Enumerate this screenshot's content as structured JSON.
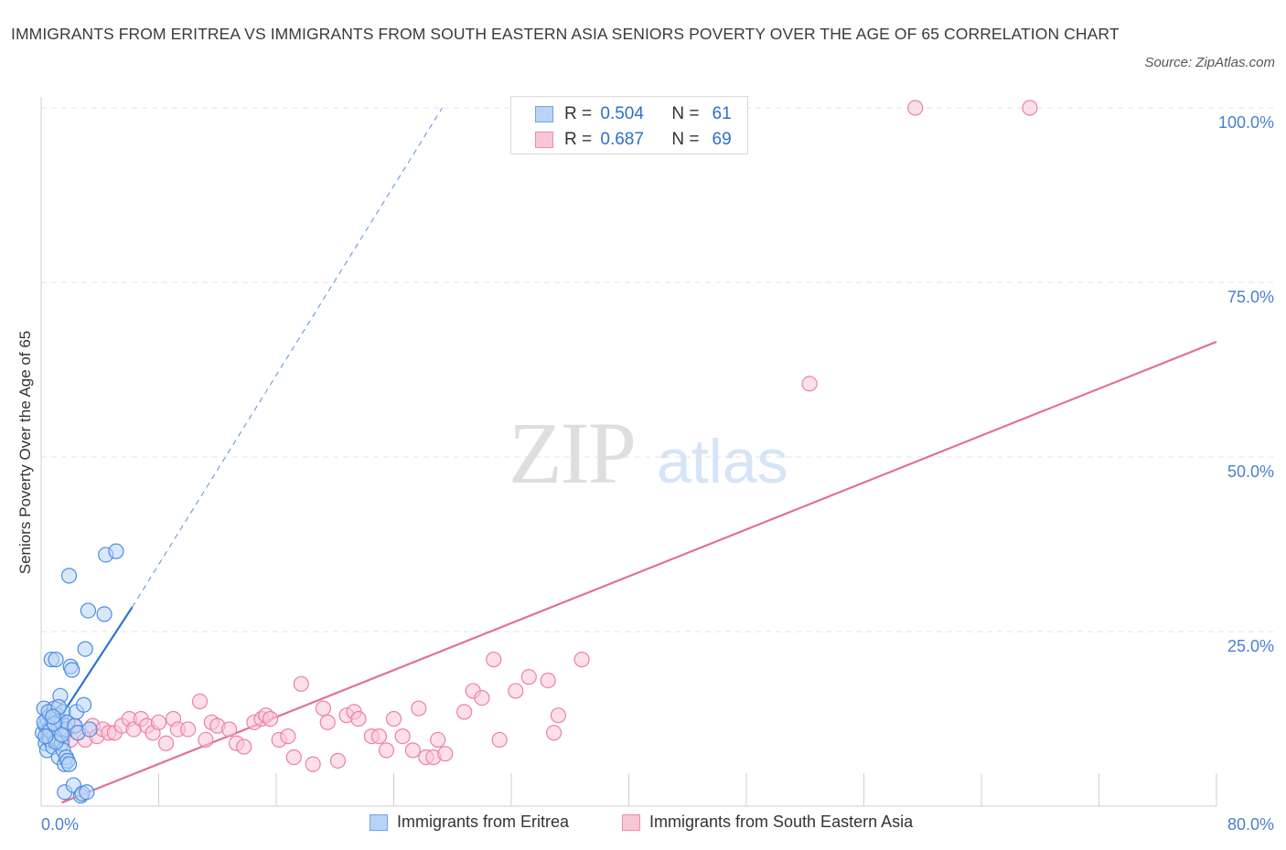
{
  "title": "IMMIGRANTS FROM ERITREA VS IMMIGRANTS FROM SOUTH EASTERN ASIA SENIORS POVERTY OVER THE AGE OF 65 CORRELATION CHART",
  "source": "Source: ZipAtlas.com",
  "watermark": {
    "zip": "ZIP",
    "atlas": "atlas"
  },
  "stats": [
    {
      "r_label": "R =",
      "r_value": "0.504",
      "n_label": "N =",
      "n_value": "61",
      "color": "#6fa3e8",
      "fill": "#b9d3f5"
    },
    {
      "r_label": "R =",
      "r_value": "0.687",
      "n_label": "N =",
      "n_value": "69",
      "color": "#f08cab",
      "fill": "#f9c6d6"
    }
  ],
  "legend": [
    {
      "label": "Immigrants from Eritrea",
      "color": "#6fa3e8",
      "fill": "#b9d3f5"
    },
    {
      "label": "Immigrants from South Eastern Asia",
      "color": "#f08cab",
      "fill": "#f9c6d6"
    }
  ],
  "chart_data": {
    "type": "scatter",
    "title": "IMMIGRANTS FROM ERITREA VS IMMIGRANTS FROM SOUTH EASTERN ASIA SENIORS POVERTY OVER THE AGE OF 65 CORRELATION CHART",
    "xlabel": "",
    "ylabel": "Seniors Poverty Over the Age of 65",
    "xlim": [
      0,
      80
    ],
    "ylim": [
      0,
      100
    ],
    "x_tick_labels": [
      {
        "value": 0,
        "label": "0.0%"
      },
      {
        "value": 80,
        "label": "80.0%"
      }
    ],
    "y_tick_labels": [
      {
        "value": 25,
        "label": "25.0%"
      },
      {
        "value": 50,
        "label": "50.0%"
      },
      {
        "value": 75,
        "label": "75.0%"
      },
      {
        "value": 100,
        "label": "100.0%"
      }
    ],
    "grid": true,
    "series": [
      {
        "name": "Immigrants from Eritrea",
        "color": "#4a8ee0",
        "fill": "#b9d3f5",
        "trend": {
          "x0": 0.3,
          "y0": 9.5,
          "x1": 6.2,
          "y1": 28.5,
          "dash_to": {
            "x": 27.3,
            "y": 100
          },
          "color": "#2f74d0"
        },
        "points": [
          [
            0.1,
            10.5
          ],
          [
            0.2,
            14.0
          ],
          [
            0.3,
            11.5
          ],
          [
            0.3,
            9.0
          ],
          [
            0.4,
            12.5
          ],
          [
            0.4,
            8.0
          ],
          [
            0.5,
            10.0
          ],
          [
            0.5,
            11.0
          ],
          [
            0.6,
            13.0
          ],
          [
            0.6,
            9.5
          ],
          [
            0.7,
            21.0
          ],
          [
            0.7,
            11.0
          ],
          [
            0.8,
            12.0
          ],
          [
            0.8,
            8.5
          ],
          [
            0.9,
            14.0
          ],
          [
            0.9,
            10.0
          ],
          [
            1.0,
            21.0
          ],
          [
            1.0,
            12.5
          ],
          [
            1.1,
            9.5
          ],
          [
            1.1,
            13.0
          ],
          [
            1.2,
            11.0
          ],
          [
            1.2,
            7.0
          ],
          [
            1.3,
            15.8
          ],
          [
            1.3,
            10.5
          ],
          [
            1.4,
            12.0
          ],
          [
            1.4,
            9.0
          ],
          [
            1.5,
            8.0
          ],
          [
            1.5,
            13.5
          ],
          [
            1.6,
            6.0
          ],
          [
            1.6,
            2.0
          ],
          [
            1.7,
            11.0
          ],
          [
            1.7,
            7.0
          ],
          [
            1.8,
            12.0
          ],
          [
            1.8,
            6.5
          ],
          [
            1.9,
            33.0
          ],
          [
            1.9,
            6.0
          ],
          [
            2.0,
            20.0
          ],
          [
            2.1,
            19.5
          ],
          [
            2.2,
            3.0
          ],
          [
            2.3,
            11.5
          ],
          [
            2.4,
            13.5
          ],
          [
            2.5,
            10.5
          ],
          [
            2.7,
            1.5
          ],
          [
            2.8,
            1.8
          ],
          [
            2.9,
            14.5
          ],
          [
            3.0,
            22.5
          ],
          [
            3.1,
            2.0
          ],
          [
            3.2,
            28.0
          ],
          [
            3.3,
            11.0
          ],
          [
            4.3,
            27.5
          ],
          [
            4.4,
            36.0
          ],
          [
            5.1,
            36.5
          ],
          [
            0.2,
            12.0
          ],
          [
            0.5,
            13.5
          ],
          [
            0.6,
            10.8
          ],
          [
            0.9,
            11.8
          ],
          [
            1.0,
            9.2
          ],
          [
            1.2,
            14.2
          ],
          [
            1.4,
            10.2
          ],
          [
            0.8,
            12.8
          ],
          [
            0.3,
            10.0
          ]
        ]
      },
      {
        "name": "Immigrants from South Eastern Asia",
        "color": "#ee7fa4",
        "fill": "#f9c6d6",
        "trend": {
          "x0": 1.4,
          "y0": 0.5,
          "x1": 80,
          "y1": 66.5,
          "color": "#e2709b"
        },
        "points": [
          [
            0.5,
            10.5
          ],
          [
            1.0,
            11.0
          ],
          [
            1.5,
            10.0
          ],
          [
            1.8,
            12.0
          ],
          [
            2.0,
            9.5
          ],
          [
            2.2,
            11.5
          ],
          [
            2.5,
            10.5
          ],
          [
            3.0,
            9.5
          ],
          [
            3.5,
            11.5
          ],
          [
            3.8,
            10.0
          ],
          [
            4.2,
            11.0
          ],
          [
            4.6,
            10.5
          ],
          [
            5.0,
            10.5
          ],
          [
            5.5,
            11.5
          ],
          [
            6.0,
            12.5
          ],
          [
            6.3,
            11.0
          ],
          [
            6.8,
            12.5
          ],
          [
            7.2,
            11.5
          ],
          [
            7.6,
            10.5
          ],
          [
            8.0,
            12.0
          ],
          [
            8.5,
            9.0
          ],
          [
            9.0,
            12.5
          ],
          [
            9.3,
            11.0
          ],
          [
            10.0,
            11.0
          ],
          [
            10.8,
            15.0
          ],
          [
            11.2,
            9.5
          ],
          [
            11.6,
            12.0
          ],
          [
            12.0,
            11.5
          ],
          [
            12.8,
            11.0
          ],
          [
            13.3,
            9.0
          ],
          [
            13.8,
            8.5
          ],
          [
            14.5,
            12.0
          ],
          [
            15.0,
            12.5
          ],
          [
            15.3,
            13.0
          ],
          [
            15.6,
            12.5
          ],
          [
            16.2,
            9.5
          ],
          [
            16.8,
            10.0
          ],
          [
            17.2,
            7.0
          ],
          [
            17.7,
            17.5
          ],
          [
            18.5,
            6.0
          ],
          [
            19.2,
            14.0
          ],
          [
            19.5,
            12.0
          ],
          [
            20.2,
            6.5
          ],
          [
            20.8,
            13.0
          ],
          [
            21.3,
            13.5
          ],
          [
            21.6,
            12.5
          ],
          [
            22.5,
            10.0
          ],
          [
            23.0,
            10.0
          ],
          [
            23.5,
            8.0
          ],
          [
            24.0,
            12.5
          ],
          [
            24.6,
            10.0
          ],
          [
            25.3,
            8.0
          ],
          [
            25.7,
            14.0
          ],
          [
            26.2,
            7.0
          ],
          [
            26.7,
            7.0
          ],
          [
            27.0,
            9.5
          ],
          [
            27.5,
            7.5
          ],
          [
            28.8,
            13.5
          ],
          [
            29.4,
            16.5
          ],
          [
            30.0,
            15.5
          ],
          [
            30.8,
            21.0
          ],
          [
            31.2,
            9.5
          ],
          [
            32.3,
            16.5
          ],
          [
            33.2,
            18.5
          ],
          [
            34.5,
            18.0
          ],
          [
            34.9,
            10.5
          ],
          [
            35.2,
            13.0
          ],
          [
            36.8,
            21.0
          ],
          [
            52.3,
            60.5
          ]
        ],
        "extra_points": [
          [
            59.5,
            100
          ],
          [
            67.3,
            100
          ]
        ]
      }
    ]
  }
}
